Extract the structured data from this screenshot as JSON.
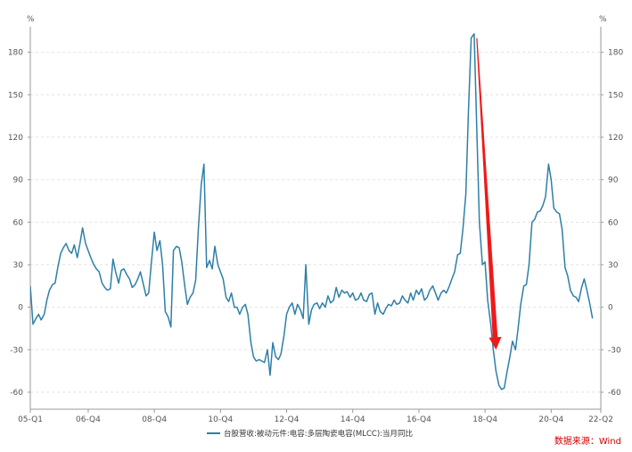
{
  "chart_data": {
    "type": "line",
    "unit_left": "%",
    "unit_right": "%",
    "yticks": [
      -60,
      -30,
      0,
      30,
      60,
      90,
      120,
      150,
      180
    ],
    "ylim": [
      -72,
      198
    ],
    "xlim": [
      2005.0,
      2022.25
    ],
    "x_ticks": [
      {
        "label": "05-Q1",
        "x": 2005.0
      },
      {
        "label": "06-Q4",
        "x": 2006.75
      },
      {
        "label": "08-Q4",
        "x": 2008.75
      },
      {
        "label": "10-Q4",
        "x": 2010.75
      },
      {
        "label": "12-Q4",
        "x": 2012.75
      },
      {
        "label": "14-Q4",
        "x": 2014.75
      },
      {
        "label": "16-Q4",
        "x": 2016.75
      },
      {
        "label": "18-Q4",
        "x": 2018.75
      },
      {
        "label": "20-Q4",
        "x": 2020.75
      },
      {
        "label": "22-Q2",
        "x": 2022.25
      }
    ],
    "grid": true,
    "legend_position": "bottom-center",
    "series": [
      {
        "name": "台股营收:被动元件:电容:多层陶瓷电容(MLCC):当月同比",
        "color": "#2e7fa8",
        "points": [
          [
            2005.0,
            15
          ],
          [
            2005.08,
            -12
          ],
          [
            2005.17,
            -8
          ],
          [
            2005.25,
            -5
          ],
          [
            2005.33,
            -9
          ],
          [
            2005.42,
            -5
          ],
          [
            2005.5,
            5
          ],
          [
            2005.58,
            12
          ],
          [
            2005.67,
            16
          ],
          [
            2005.75,
            17
          ],
          [
            2005.83,
            28
          ],
          [
            2005.92,
            38
          ],
          [
            2006.0,
            42
          ],
          [
            2006.08,
            45
          ],
          [
            2006.17,
            40
          ],
          [
            2006.25,
            38
          ],
          [
            2006.33,
            44
          ],
          [
            2006.42,
            35
          ],
          [
            2006.5,
            45
          ],
          [
            2006.58,
            56
          ],
          [
            2006.67,
            45
          ],
          [
            2006.75,
            40
          ],
          [
            2006.83,
            35
          ],
          [
            2006.92,
            30
          ],
          [
            2007.0,
            27
          ],
          [
            2007.08,
            25
          ],
          [
            2007.17,
            17
          ],
          [
            2007.25,
            14
          ],
          [
            2007.33,
            12
          ],
          [
            2007.42,
            13
          ],
          [
            2007.5,
            34
          ],
          [
            2007.58,
            25
          ],
          [
            2007.67,
            17
          ],
          [
            2007.75,
            26
          ],
          [
            2007.83,
            27
          ],
          [
            2007.92,
            23
          ],
          [
            2008.0,
            20
          ],
          [
            2008.08,
            14
          ],
          [
            2008.17,
            16
          ],
          [
            2008.25,
            20
          ],
          [
            2008.33,
            25
          ],
          [
            2008.42,
            16
          ],
          [
            2008.5,
            8
          ],
          [
            2008.58,
            10
          ],
          [
            2008.67,
            34
          ],
          [
            2008.75,
            53
          ],
          [
            2008.83,
            40
          ],
          [
            2008.92,
            47
          ],
          [
            2009.0,
            30
          ],
          [
            2009.08,
            -3
          ],
          [
            2009.17,
            -7
          ],
          [
            2009.25,
            -14
          ],
          [
            2009.33,
            40
          ],
          [
            2009.42,
            43
          ],
          [
            2009.5,
            42
          ],
          [
            2009.58,
            32
          ],
          [
            2009.67,
            15
          ],
          [
            2009.75,
            2
          ],
          [
            2009.83,
            7
          ],
          [
            2009.92,
            10
          ],
          [
            2010.0,
            19
          ],
          [
            2010.08,
            55
          ],
          [
            2010.17,
            87
          ],
          [
            2010.25,
            101
          ],
          [
            2010.33,
            28
          ],
          [
            2010.42,
            33
          ],
          [
            2010.5,
            27
          ],
          [
            2010.58,
            43
          ],
          [
            2010.67,
            30
          ],
          [
            2010.75,
            25
          ],
          [
            2010.83,
            20
          ],
          [
            2010.92,
            7
          ],
          [
            2011.0,
            4
          ],
          [
            2011.08,
            10
          ],
          [
            2011.17,
            0
          ],
          [
            2011.25,
            0
          ],
          [
            2011.33,
            -5
          ],
          [
            2011.42,
            0
          ],
          [
            2011.5,
            2
          ],
          [
            2011.58,
            -5
          ],
          [
            2011.67,
            -25
          ],
          [
            2011.75,
            -35
          ],
          [
            2011.83,
            -38
          ],
          [
            2011.92,
            -37
          ],
          [
            2012.0,
            -38
          ],
          [
            2012.08,
            -39
          ],
          [
            2012.17,
            -30
          ],
          [
            2012.25,
            -48
          ],
          [
            2012.33,
            -25
          ],
          [
            2012.42,
            -35
          ],
          [
            2012.5,
            -37
          ],
          [
            2012.58,
            -33
          ],
          [
            2012.67,
            -20
          ],
          [
            2012.75,
            -5
          ],
          [
            2012.83,
            0
          ],
          [
            2012.92,
            3
          ],
          [
            2013.0,
            -5
          ],
          [
            2013.08,
            2
          ],
          [
            2013.17,
            -2
          ],
          [
            2013.25,
            -8
          ],
          [
            2013.33,
            30
          ],
          [
            2013.42,
            -12
          ],
          [
            2013.5,
            -2
          ],
          [
            2013.58,
            2
          ],
          [
            2013.67,
            3
          ],
          [
            2013.75,
            -1
          ],
          [
            2013.83,
            3
          ],
          [
            2013.92,
            0
          ],
          [
            2014.0,
            8
          ],
          [
            2014.08,
            3
          ],
          [
            2014.17,
            5
          ],
          [
            2014.25,
            14
          ],
          [
            2014.33,
            7
          ],
          [
            2014.42,
            12
          ],
          [
            2014.5,
            10
          ],
          [
            2014.58,
            11
          ],
          [
            2014.67,
            7
          ],
          [
            2014.75,
            10
          ],
          [
            2014.83,
            5
          ],
          [
            2014.92,
            6
          ],
          [
            2015.0,
            10
          ],
          [
            2015.08,
            5
          ],
          [
            2015.17,
            4
          ],
          [
            2015.25,
            9
          ],
          [
            2015.33,
            10
          ],
          [
            2015.42,
            -5
          ],
          [
            2015.5,
            3
          ],
          [
            2015.58,
            -3
          ],
          [
            2015.67,
            -5
          ],
          [
            2015.75,
            -1
          ],
          [
            2015.83,
            2
          ],
          [
            2015.92,
            1
          ],
          [
            2016.0,
            5
          ],
          [
            2016.08,
            2
          ],
          [
            2016.17,
            3
          ],
          [
            2016.25,
            8
          ],
          [
            2016.33,
            5
          ],
          [
            2016.42,
            3
          ],
          [
            2016.5,
            10
          ],
          [
            2016.58,
            5
          ],
          [
            2016.67,
            12
          ],
          [
            2016.75,
            9
          ],
          [
            2016.83,
            13
          ],
          [
            2016.92,
            5
          ],
          [
            2017.0,
            7
          ],
          [
            2017.08,
            12
          ],
          [
            2017.17,
            15
          ],
          [
            2017.25,
            10
          ],
          [
            2017.33,
            5
          ],
          [
            2017.42,
            10
          ],
          [
            2017.5,
            12
          ],
          [
            2017.58,
            10
          ],
          [
            2017.67,
            15
          ],
          [
            2017.75,
            20
          ],
          [
            2017.83,
            25
          ],
          [
            2017.92,
            37
          ],
          [
            2018.0,
            38
          ],
          [
            2018.08,
            55
          ],
          [
            2018.17,
            80
          ],
          [
            2018.25,
            140
          ],
          [
            2018.33,
            190
          ],
          [
            2018.42,
            193
          ],
          [
            2018.5,
            125
          ],
          [
            2018.58,
            60
          ],
          [
            2018.67,
            30
          ],
          [
            2018.75,
            32
          ],
          [
            2018.83,
            5
          ],
          [
            2018.92,
            -12
          ],
          [
            2019.0,
            -30
          ],
          [
            2019.08,
            -45
          ],
          [
            2019.17,
            -55
          ],
          [
            2019.25,
            -58
          ],
          [
            2019.33,
            -57
          ],
          [
            2019.42,
            -45
          ],
          [
            2019.5,
            -35
          ],
          [
            2019.58,
            -24
          ],
          [
            2019.67,
            -30
          ],
          [
            2019.75,
            -15
          ],
          [
            2019.83,
            2
          ],
          [
            2019.92,
            15
          ],
          [
            2020.0,
            16
          ],
          [
            2020.08,
            30
          ],
          [
            2020.17,
            60
          ],
          [
            2020.25,
            62
          ],
          [
            2020.33,
            67
          ],
          [
            2020.42,
            68
          ],
          [
            2020.5,
            72
          ],
          [
            2020.58,
            78
          ],
          [
            2020.67,
            101
          ],
          [
            2020.75,
            90
          ],
          [
            2020.83,
            70
          ],
          [
            2020.92,
            67
          ],
          [
            2021.0,
            66
          ],
          [
            2021.08,
            55
          ],
          [
            2021.17,
            28
          ],
          [
            2021.25,
            22
          ],
          [
            2021.33,
            12
          ],
          [
            2021.42,
            8
          ],
          [
            2021.5,
            7
          ],
          [
            2021.58,
            4
          ],
          [
            2021.67,
            14
          ],
          [
            2021.75,
            20
          ],
          [
            2021.83,
            12
          ],
          [
            2021.92,
            2
          ],
          [
            2022.0,
            -8
          ]
        ]
      }
    ],
    "annotations": [
      {
        "type": "arrow",
        "color": "#ee1a1a",
        "from": [
          2018.5,
          190
        ],
        "to": [
          2019.08,
          -30
        ]
      }
    ]
  },
  "source": "数据来源：Wind"
}
